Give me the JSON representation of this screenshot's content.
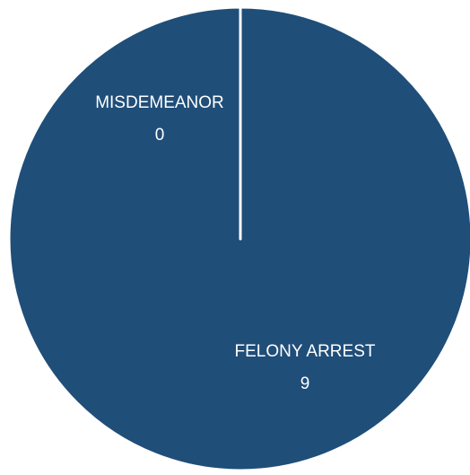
{
  "chart_data": {
    "type": "pie",
    "categories": [
      "FELONY ARREST",
      "MISDEMEANOR"
    ],
    "values": [
      9,
      0
    ],
    "colors": [
      "#1f4e79",
      "#1f4e79"
    ]
  }
}
